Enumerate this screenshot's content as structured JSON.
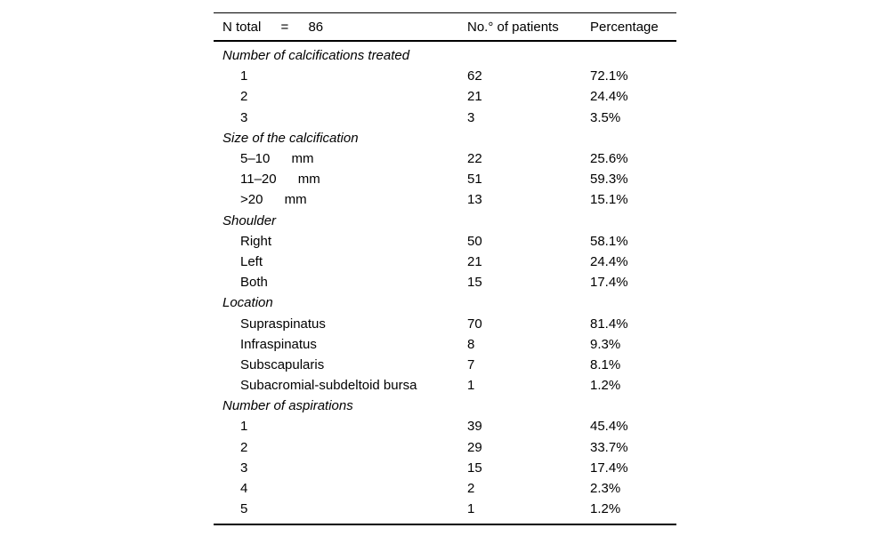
{
  "table": {
    "header": {
      "n_total_label": "N total",
      "equals": "=",
      "n_total_value": "86",
      "col_patients": "No.° of patients",
      "col_percentage": "Percentage"
    },
    "sections": [
      {
        "title": "Number of calcifications treated",
        "rows": [
          {
            "label": "1",
            "unit": "",
            "count": "62",
            "pct": "72.1%"
          },
          {
            "label": "2",
            "unit": "",
            "count": "21",
            "pct": "24.4%"
          },
          {
            "label": "3",
            "unit": "",
            "count": "3",
            "pct": "3.5%"
          }
        ]
      },
      {
        "title": "Size of the calcification",
        "rows": [
          {
            "label": "5–10",
            "unit": "mm",
            "count": "22",
            "pct": "25.6%"
          },
          {
            "label": "11–20",
            "unit": "mm",
            "count": "51",
            "pct": "59.3%"
          },
          {
            "label": ">20",
            "unit": "mm",
            "count": "13",
            "pct": "15.1%"
          }
        ]
      },
      {
        "title": "Shoulder",
        "rows": [
          {
            "label": "Right",
            "unit": "",
            "count": "50",
            "pct": "58.1%"
          },
          {
            "label": "Left",
            "unit": "",
            "count": "21",
            "pct": "24.4%"
          },
          {
            "label": "Both",
            "unit": "",
            "count": "15",
            "pct": "17.4%"
          }
        ]
      },
      {
        "title": "Location",
        "rows": [
          {
            "label": "Supraspinatus",
            "unit": "",
            "count": "70",
            "pct": "81.4%"
          },
          {
            "label": "Infraspinatus",
            "unit": "",
            "count": "8",
            "pct": "9.3%"
          },
          {
            "label": "Subscapularis",
            "unit": "",
            "count": "7",
            "pct": "8.1%"
          },
          {
            "label": "Subacromial-subdeltoid bursa",
            "unit": "",
            "count": "1",
            "pct": "1.2%"
          }
        ]
      },
      {
        "title": "Number of aspirations",
        "rows": [
          {
            "label": "1",
            "unit": "",
            "count": "39",
            "pct": "45.4%"
          },
          {
            "label": "2",
            "unit": "",
            "count": "29",
            "pct": "33.7%"
          },
          {
            "label": "3",
            "unit": "",
            "count": "15",
            "pct": "17.4%"
          },
          {
            "label": "4",
            "unit": "",
            "count": "2",
            "pct": "2.3%"
          },
          {
            "label": "5",
            "unit": "",
            "count": "1",
            "pct": "1.2%"
          }
        ]
      }
    ]
  }
}
